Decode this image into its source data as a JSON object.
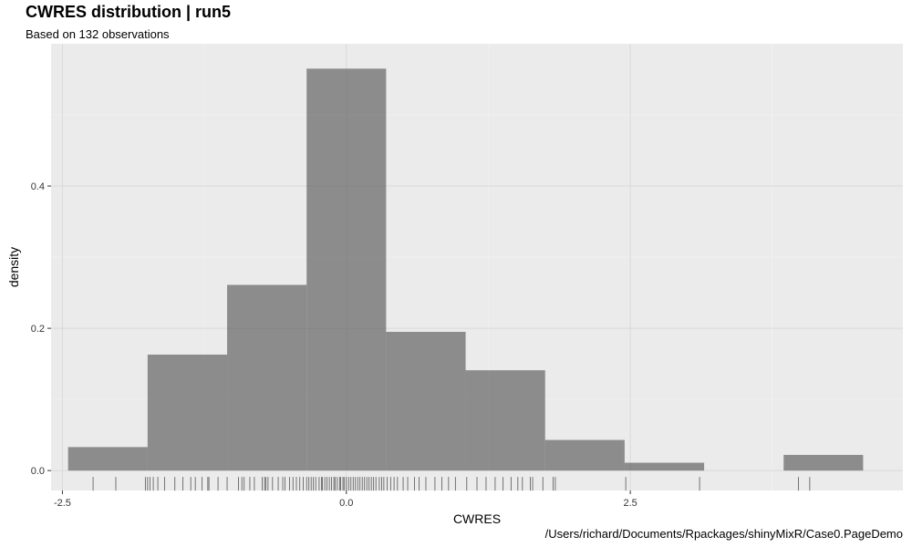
{
  "chart_data": {
    "type": "histogram",
    "title": "CWRES distribution | run5",
    "subtitle": "Based on 132 observations",
    "caption": "/Users/richard/Documents/Rpackages/shinyMixR/Case0.PageDemo",
    "xlabel": "CWRES",
    "ylabel": "density",
    "xlim": [
      -2.6,
      4.9
    ],
    "ylim": [
      -0.028,
      0.6
    ],
    "x_ticks": [
      -2.5,
      0.0,
      2.5
    ],
    "x_tick_labels": [
      "-2.5",
      "0.0",
      "2.5"
    ],
    "y_ticks": [
      0.0,
      0.2,
      0.4
    ],
    "y_tick_labels": [
      "0.0",
      "0.2",
      "0.4"
    ],
    "grid": true,
    "bins": [
      {
        "x0": -2.45,
        "x1": -1.75,
        "density": 0.033
      },
      {
        "x0": -1.75,
        "x1": -1.05,
        "density": 0.163
      },
      {
        "x0": -1.05,
        "x1": -0.35,
        "density": 0.261
      },
      {
        "x0": -0.35,
        "x1": 0.35,
        "density": 0.565
      },
      {
        "x0": 0.35,
        "x1": 1.05,
        "density": 0.195
      },
      {
        "x0": 1.05,
        "x1": 1.75,
        "density": 0.141
      },
      {
        "x0": 1.75,
        "x1": 2.45,
        "density": 0.043
      },
      {
        "x0": 2.45,
        "x1": 3.15,
        "density": 0.011
      },
      {
        "x0": 3.15,
        "x1": 3.85,
        "density": 0.0
      },
      {
        "x0": 3.85,
        "x1": 4.55,
        "density": 0.022
      }
    ],
    "rug_x": [
      -2.23,
      -2.03,
      -1.77,
      -1.75,
      -1.73,
      -1.7,
      -1.66,
      -1.6,
      -1.51,
      -1.44,
      -1.37,
      -1.33,
      -1.27,
      -1.22,
      -1.21,
      -1.13,
      -1.05,
      -0.95,
      -0.92,
      -0.9,
      -0.85,
      -0.81,
      -0.74,
      -0.72,
      -0.71,
      -0.69,
      -0.65,
      -0.6,
      -0.56,
      -0.54,
      -0.5,
      -0.47,
      -0.44,
      -0.41,
      -0.38,
      -0.35,
      -0.33,
      -0.31,
      -0.29,
      -0.27,
      -0.24,
      -0.22,
      -0.21,
      -0.19,
      -0.17,
      -0.15,
      -0.13,
      -0.11,
      -0.1,
      -0.08,
      -0.06,
      -0.05,
      -0.03,
      -0.02,
      0.0,
      0.02,
      0.04,
      0.06,
      0.08,
      0.1,
      0.12,
      0.14,
      0.16,
      0.18,
      0.2,
      0.22,
      0.24,
      0.26,
      0.29,
      0.31,
      0.33,
      0.36,
      0.39,
      0.42,
      0.45,
      0.5,
      0.54,
      0.6,
      0.64,
      0.7,
      0.78,
      0.84,
      0.9,
      0.96,
      1.06,
      1.15,
      1.23,
      1.31,
      1.38,
      1.45,
      1.51,
      1.55,
      1.62,
      1.64,
      1.73,
      1.82,
      1.84,
      2.46,
      3.11,
      3.98,
      4.08
    ],
    "bar_color": "#595959",
    "bar_opacity": 0.65,
    "panel_bg": "#ebebeb",
    "grid_color": "#d9d9d9"
  }
}
